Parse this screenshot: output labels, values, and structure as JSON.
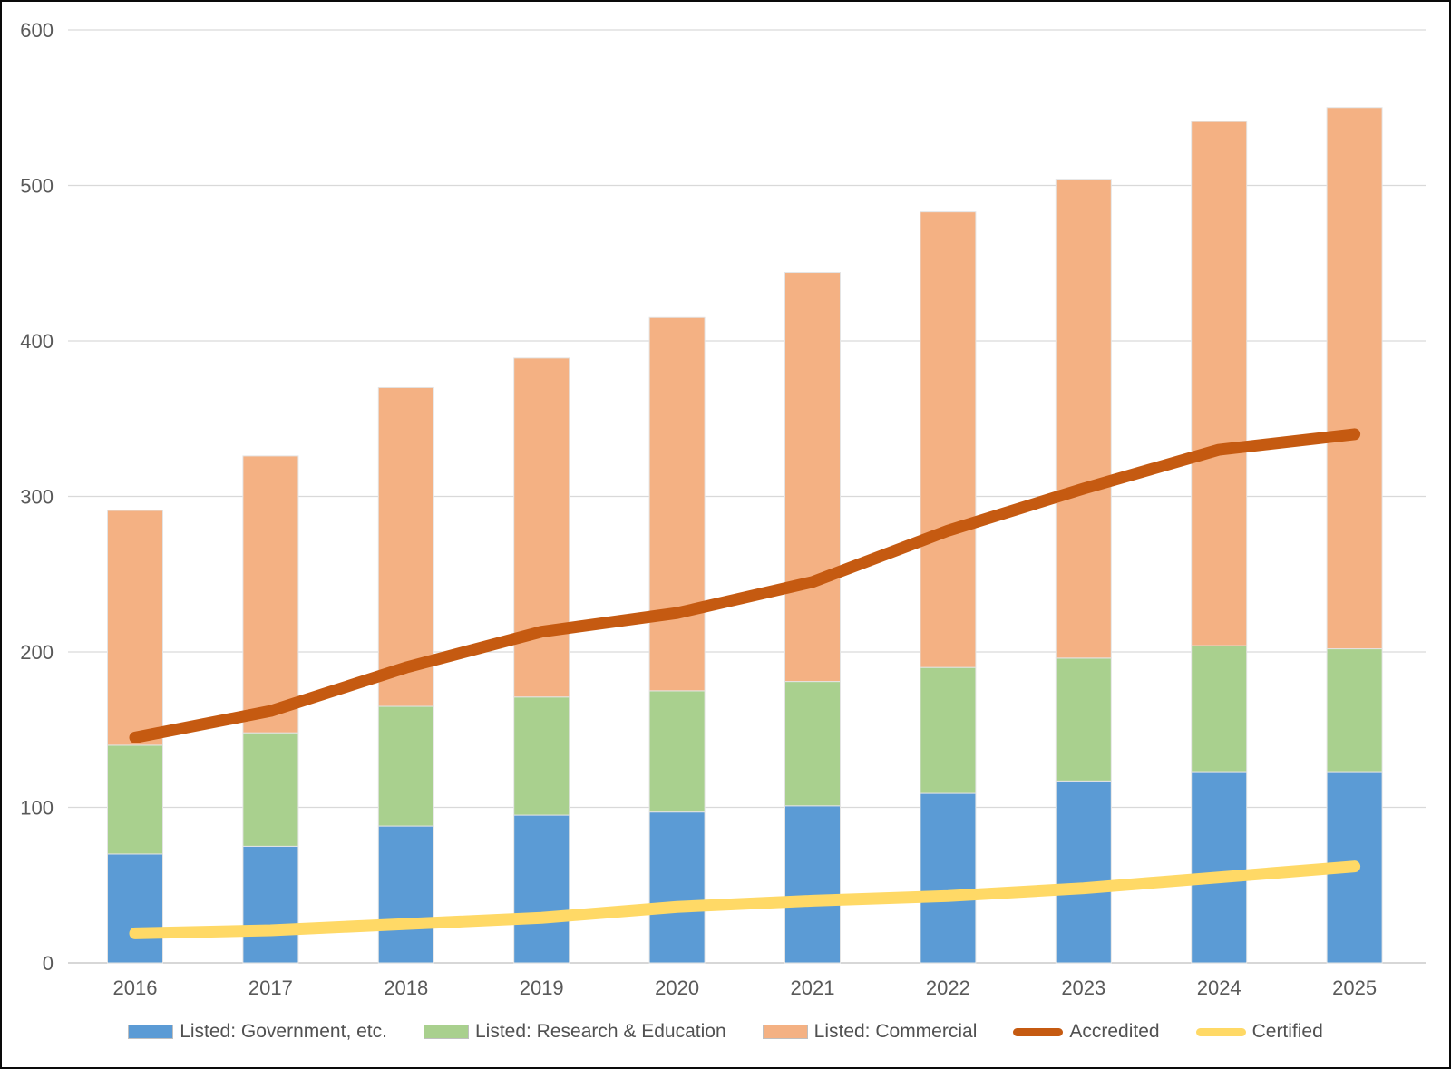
{
  "chart_data": {
    "type": "bar",
    "subtype": "stacked-bars-with-line-overlay",
    "title": "",
    "xlabel": "",
    "ylabel": "",
    "categories": [
      "2016",
      "2017",
      "2018",
      "2019",
      "2020",
      "2021",
      "2022",
      "2023",
      "2024",
      "2025"
    ],
    "series": [
      {
        "name": "Listed: Government, etc.",
        "type": "bar",
        "color": "#5B9BD5",
        "values": [
          70,
          75,
          88,
          95,
          97,
          101,
          109,
          117,
          123,
          123
        ]
      },
      {
        "name": "Listed: Research & Education",
        "type": "bar",
        "color": "#A9D08E",
        "values": [
          70,
          73,
          77,
          76,
          78,
          80,
          81,
          79,
          81,
          79
        ]
      },
      {
        "name": "Listed: Commercial",
        "type": "bar",
        "color": "#F4B183",
        "values": [
          151,
          178,
          205,
          218,
          240,
          263,
          293,
          308,
          337,
          348
        ]
      },
      {
        "name": "Accredited",
        "type": "line",
        "color": "#C55A11",
        "values": [
          145,
          162,
          190,
          213,
          225,
          245,
          278,
          305,
          330,
          340
        ]
      },
      {
        "name": "Certified",
        "type": "line",
        "color": "#FFD966",
        "values": [
          19,
          21,
          25,
          29,
          36,
          40,
          43,
          48,
          55,
          62
        ]
      }
    ],
    "stacked_totals": [
      291,
      326,
      370,
      389,
      415,
      444,
      483,
      504,
      541,
      550
    ],
    "ylim": [
      0,
      600
    ],
    "ytick_step": 100,
    "ytick_labels": [
      "0",
      "100",
      "200",
      "300",
      "400",
      "500",
      "600"
    ],
    "grid": true,
    "legend_position": "bottom",
    "colors": {
      "gridline": "#D9D9D9",
      "axis_line": "#BFBFBF",
      "tick_text": "#595959",
      "bar_outline": "#E4E4E4"
    }
  }
}
